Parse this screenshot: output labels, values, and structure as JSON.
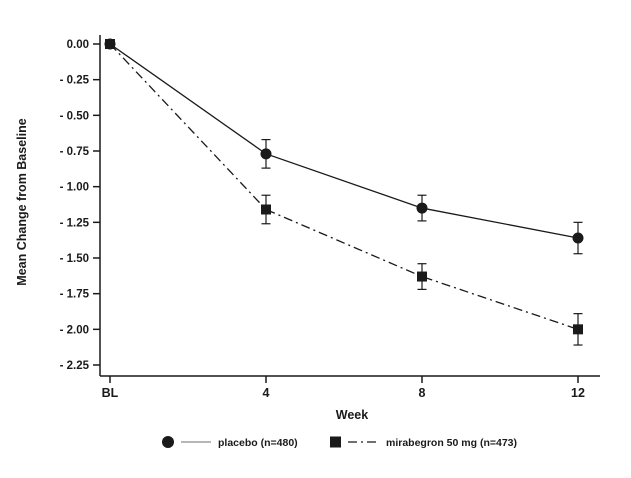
{
  "chart_data": {
    "type": "line",
    "title": "",
    "xlabel": "Week",
    "ylabel": "Mean Change from Baseline",
    "x": [
      0,
      4,
      8,
      12
    ],
    "x_tick_labels": [
      "BL",
      "4",
      "8",
      "12"
    ],
    "y_ticks": [
      0.0,
      -0.25,
      -0.5,
      -0.75,
      -1.0,
      -1.25,
      -1.5,
      -1.75,
      -2.0,
      -2.25
    ],
    "y_tick_labels": [
      "0.00",
      "- 0.25",
      "- 0.50",
      "- 0.75",
      "- 1.00",
      "- 1.25",
      "- 1.50",
      "- 1.75",
      "- 2.00",
      "- 2.25"
    ],
    "ylim": [
      -2.25,
      0.0
    ],
    "grid": false,
    "legend_position": "bottom",
    "series": [
      {
        "name": "placebo (n=480)",
        "marker": "circle",
        "line_style": "solid",
        "values": [
          0.0,
          -0.77,
          -1.15,
          -1.36
        ],
        "error": [
          0,
          0.1,
          0.09,
          0.11
        ]
      },
      {
        "name": "mirabegron 50 mg (n=473)",
        "marker": "square",
        "line_style": "dash-dot",
        "values": [
          0.0,
          -1.16,
          -1.63,
          -2.0
        ],
        "error": [
          0,
          0.1,
          0.09,
          0.11
        ]
      }
    ],
    "colors": {
      "foreground": "#1a1a1a",
      "background": "#ffffff"
    }
  }
}
